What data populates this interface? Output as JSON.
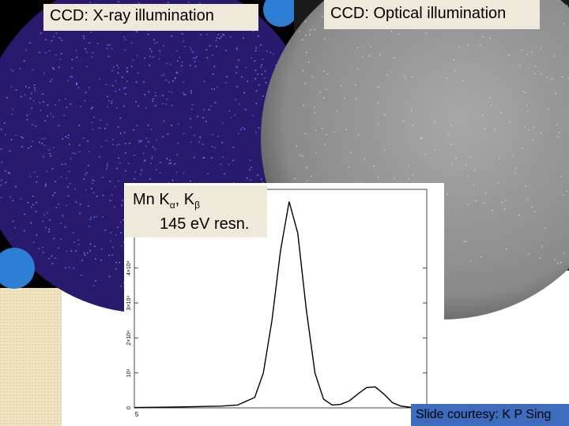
{
  "xray_label": "CCD: X-ray illumination",
  "optical_label": "CCD: Optical illumination",
  "spectrum_label": {
    "text1": "Mn K",
    "sub1": "α",
    "text2": ", K",
    "sub2": "β",
    "line2": "145 eV resn."
  },
  "credit": "Slide courtesy: K P Sing",
  "chart_data": {
    "type": "line",
    "x": [
      5.0,
      5.1,
      5.2,
      5.3,
      5.4,
      5.5,
      5.6,
      5.7,
      5.75,
      5.8,
      5.85,
      5.9,
      5.95,
      6.0,
      6.05,
      6.1,
      6.15,
      6.2,
      6.25,
      6.3,
      6.35,
      6.4,
      6.45,
      6.5,
      6.55,
      6.6,
      6.7
    ],
    "values": [
      100,
      150,
      200,
      300,
      400,
      500,
      800,
      3000,
      10000,
      25000,
      45000,
      59000,
      50000,
      28000,
      10000,
      2500,
      800,
      1000,
      2000,
      4000,
      5800,
      6000,
      4000,
      1500,
      500,
      200,
      100
    ],
    "color": "#000000",
    "xlim": [
      5,
      6.7
    ],
    "xticks": [
      5
    ],
    "ylim": [
      0,
      62500
    ],
    "yticks": [
      0,
      {
        "value": 10000,
        "label": "10⁴"
      },
      {
        "value": 20000,
        "label": "2×10⁴"
      },
      {
        "value": 30000,
        "label": "3×10⁴"
      },
      {
        "value": 40000,
        "label": "4×10⁴"
      }
    ]
  }
}
